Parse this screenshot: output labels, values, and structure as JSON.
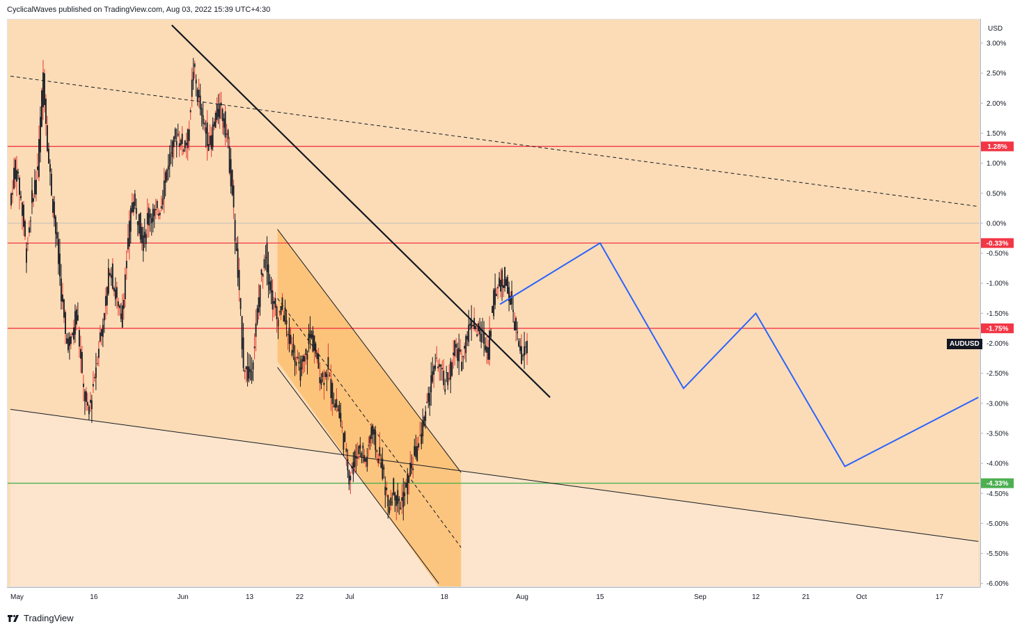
{
  "header": {
    "publisher_text": "CyclicalWaves published on TradingView.com, Aug 03, 2022 15:39 UTC+4:30"
  },
  "footer": {
    "brand": "TradingView",
    "logo_icon": "tradingview-logo-icon"
  },
  "colors": {
    "background": "#fbdcb6",
    "zone_light": "#fde5cd",
    "channel_fill": "#fbbf71",
    "candle": "#131722",
    "wick_red": "#e53935",
    "level_red": "#f23645",
    "level_green": "#4caf50",
    "projection_blue": "#2962ff",
    "symbol_label_bg": "#131722"
  },
  "chart_data": {
    "type": "line",
    "symbol": "AUDUSD",
    "unit_label": "USD",
    "percent_scale": true,
    "ylim": [
      -6.0,
      3.2
    ],
    "y_ticks": [
      "3.00%",
      "2.50%",
      "2.00%",
      "1.50%",
      "1.00%",
      "0.50%",
      "0.00%",
      "-0.50%",
      "-1.00%",
      "-1.50%",
      "-2.00%",
      "-2.50%",
      "-3.00%",
      "-3.50%",
      "-4.00%",
      "-4.50%",
      "-5.00%",
      "-5.50%",
      "-6.00%"
    ],
    "y_tick_values": [
      3.0,
      2.5,
      2.0,
      1.5,
      1.0,
      0.5,
      0.0,
      -0.5,
      -1.0,
      -1.5,
      -2.0,
      -2.5,
      -3.0,
      -3.5,
      -4.0,
      -4.5,
      -5.0,
      -5.5,
      -6.0
    ],
    "x_ticks": [
      "May",
      "16",
      "Jun",
      "13",
      "22",
      "Jul",
      "18",
      "Aug",
      "15",
      "Sep",
      "12",
      "21",
      "Oct",
      "17"
    ],
    "x_tick_days": [
      0,
      15,
      31,
      43,
      52,
      61,
      78,
      92,
      106,
      124,
      134,
      143,
      153,
      167
    ],
    "xlim_days": [
      0,
      174
    ],
    "price_series": {
      "name": "AUDUSD",
      "points": [
        [
          0,
          0.3
        ],
        [
          1,
          1.0
        ],
        [
          2,
          0.4
        ],
        [
          3,
          -0.5
        ],
        [
          4,
          0.4
        ],
        [
          5,
          0.9
        ],
        [
          6,
          2.5
        ],
        [
          7,
          1.0
        ],
        [
          8,
          0.1
        ],
        [
          9,
          -0.9
        ],
        [
          10,
          -1.9
        ],
        [
          11,
          -2.0
        ],
        [
          12,
          -1.4
        ],
        [
          13,
          -2.6
        ],
        [
          14,
          -3.2
        ],
        [
          15,
          -2.7
        ],
        [
          16,
          -2.0
        ],
        [
          17,
          -1.5
        ],
        [
          18,
          -0.7
        ],
        [
          19,
          -1.2
        ],
        [
          20,
          -1.6
        ],
        [
          21,
          -0.6
        ],
        [
          22,
          0.4
        ],
        [
          23,
          0.1
        ],
        [
          24,
          -0.3
        ],
        [
          25,
          0.2
        ],
        [
          26,
          0.1
        ],
        [
          27,
          0.3
        ],
        [
          28,
          0.8
        ],
        [
          29,
          1.2
        ],
        [
          30,
          1.5
        ],
        [
          31,
          1.3
        ],
        [
          32,
          1.4
        ],
        [
          33,
          2.6
        ],
        [
          34,
          2.0
        ],
        [
          35,
          1.6
        ],
        [
          36,
          1.3
        ],
        [
          37,
          1.8
        ],
        [
          38,
          1.9
        ],
        [
          39,
          1.5
        ],
        [
          40,
          0.5
        ],
        [
          41,
          -0.9
        ],
        [
          42,
          -2.3
        ],
        [
          43,
          -2.6
        ],
        [
          44,
          -2.0
        ],
        [
          45,
          -1.0
        ],
        [
          46,
          -0.5
        ],
        [
          47,
          -1.2
        ],
        [
          48,
          -1.6
        ],
        [
          49,
          -1.4
        ],
        [
          50,
          -1.9
        ],
        [
          51,
          -2.1
        ],
        [
          52,
          -2.5
        ],
        [
          53,
          -2.3
        ],
        [
          54,
          -1.8
        ],
        [
          55,
          -2.2
        ],
        [
          56,
          -2.6
        ],
        [
          57,
          -2.4
        ],
        [
          58,
          -2.9
        ],
        [
          59,
          -3.1
        ],
        [
          60,
          -3.6
        ],
        [
          61,
          -4.2
        ],
        [
          62,
          -3.9
        ],
        [
          63,
          -3.7
        ],
        [
          64,
          -4.0
        ],
        [
          65,
          -3.4
        ],
        [
          66,
          -3.8
        ],
        [
          67,
          -4.1
        ],
        [
          68,
          -4.7
        ],
        [
          69,
          -4.4
        ],
        [
          70,
          -4.7
        ],
        [
          71,
          -4.5
        ],
        [
          72,
          -4.1
        ],
        [
          73,
          -3.8
        ],
        [
          74,
          -3.5
        ],
        [
          75,
          -3.0
        ],
        [
          76,
          -2.5
        ],
        [
          77,
          -2.3
        ],
        [
          78,
          -2.7
        ],
        [
          79,
          -2.5
        ],
        [
          80,
          -2.1
        ],
        [
          81,
          -2.3
        ],
        [
          82,
          -1.9
        ],
        [
          83,
          -1.6
        ],
        [
          84,
          -1.8
        ],
        [
          85,
          -1.9
        ],
        [
          86,
          -2.1
        ],
        [
          87,
          -1.2
        ],
        [
          88,
          -1.0
        ],
        [
          89,
          -0.9
        ],
        [
          90,
          -1.3
        ],
        [
          91,
          -1.8
        ],
        [
          92,
          -2.3
        ],
        [
          93,
          -2.0
        ]
      ]
    },
    "projection": {
      "name": "projection",
      "points": [
        [
          88,
          -1.35
        ],
        [
          106,
          -0.33
        ],
        [
          121,
          -2.75
        ],
        [
          134,
          -1.5
        ],
        [
          150,
          -4.05
        ],
        [
          174,
          -2.9
        ]
      ]
    },
    "levels": [
      {
        "value": 1.28,
        "label": "1.28%",
        "color": "#f23645"
      },
      {
        "value": -0.33,
        "label": "-0.33%",
        "color": "#f23645"
      },
      {
        "value": -1.75,
        "label": "-1.75%",
        "color": "#f23645"
      },
      {
        "value": -4.33,
        "label": "-4.33%",
        "color": "#4caf50"
      }
    ],
    "zero_line": 0.0,
    "trendlines": [
      {
        "style": "solid-bold",
        "from": [
          29,
          3.3
        ],
        "to": [
          97,
          -2.9
        ]
      },
      {
        "style": "dashed",
        "from": [
          0,
          2.45
        ],
        "to": [
          174,
          0.28
        ]
      },
      {
        "style": "solid-thin",
        "from": [
          0,
          -3.1
        ],
        "to": [
          174,
          -5.3
        ]
      }
    ],
    "channel": {
      "upper": [
        [
          48,
          -0.1
        ],
        [
          81,
          -4.15
        ]
      ],
      "lower": [
        [
          48,
          -2.4
        ],
        [
          77,
          -6.0
        ]
      ],
      "midline": [
        [
          48,
          -1.25
        ],
        [
          81,
          -5.4
        ]
      ],
      "shade_x": [
        48,
        81
      ],
      "shade_y_bottom": -2.3
    },
    "grid": false,
    "legend": "none"
  }
}
